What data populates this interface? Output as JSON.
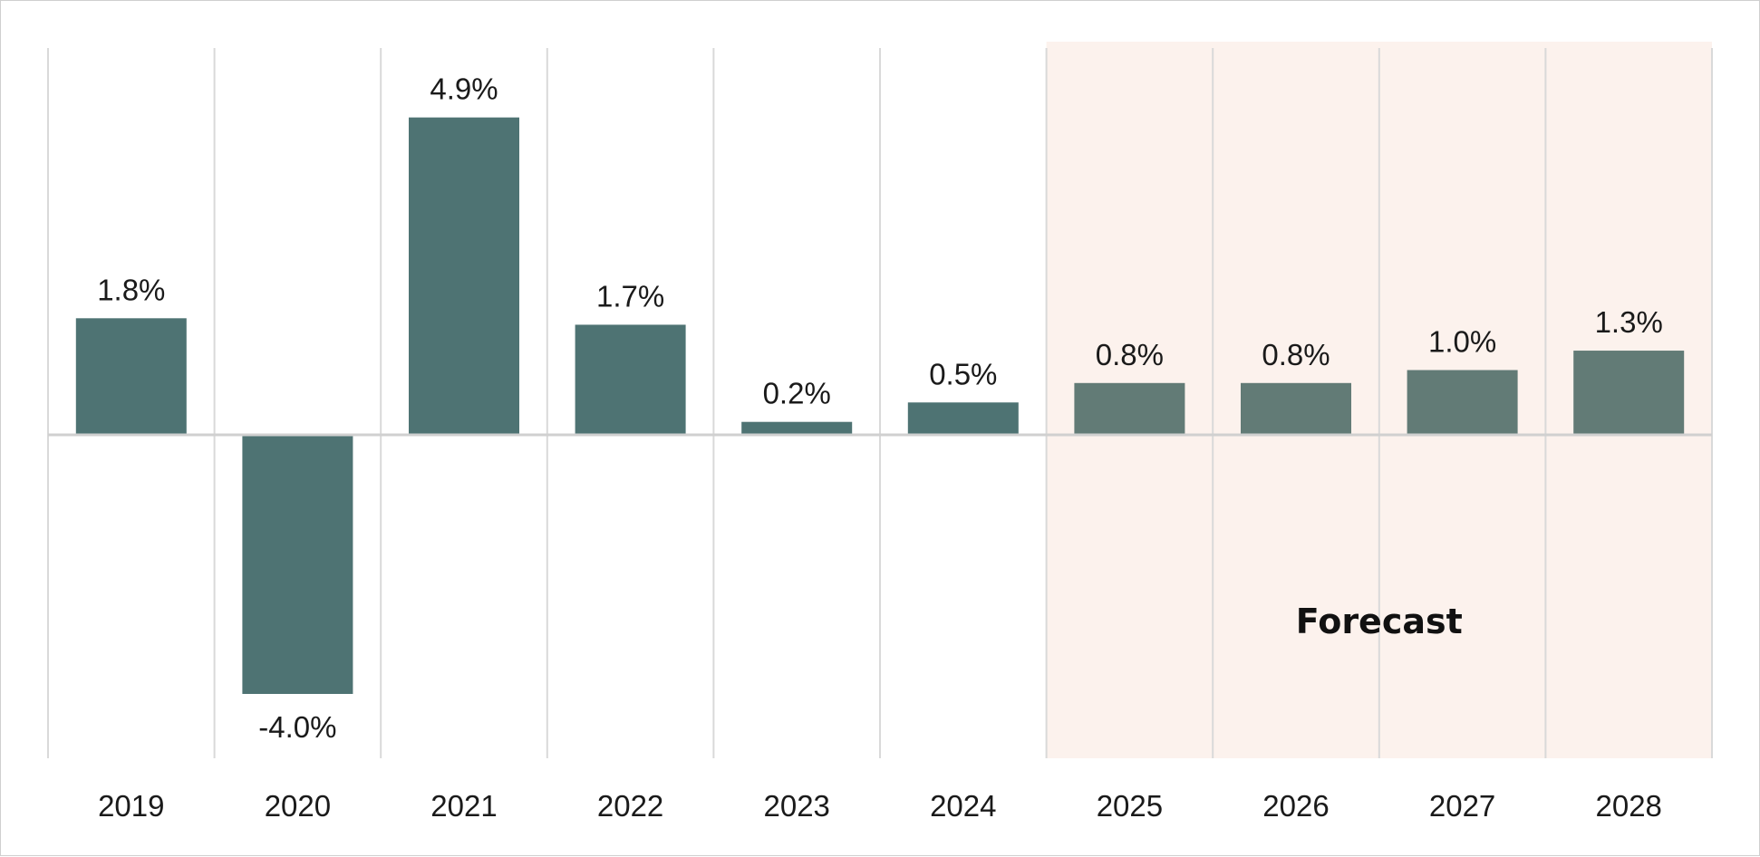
{
  "chart_data": {
    "type": "bar",
    "categories": [
      "2019",
      "2020",
      "2021",
      "2022",
      "2023",
      "2024",
      "2025",
      "2026",
      "2027",
      "2028"
    ],
    "values": [
      1.8,
      -4.0,
      4.9,
      1.7,
      0.2,
      0.5,
      0.8,
      0.8,
      1.0,
      1.3
    ],
    "value_labels": [
      "1.8%",
      "-4.0%",
      "4.9%",
      "1.7%",
      "0.2%",
      "0.5%",
      "0.8%",
      "0.8%",
      "1.0%",
      "1.3%"
    ],
    "forecast_start": "2025",
    "forecast_label": "Forecast",
    "ylim": [
      -5.0,
      6.0
    ],
    "grid": "vertical",
    "colors": {
      "actual_bar": "#4e7373",
      "forecast_bar": "#627b76",
      "forecast_band": "#fcf2ed",
      "grid": "#d9d9d9",
      "axis": "#d0d0d0"
    }
  }
}
